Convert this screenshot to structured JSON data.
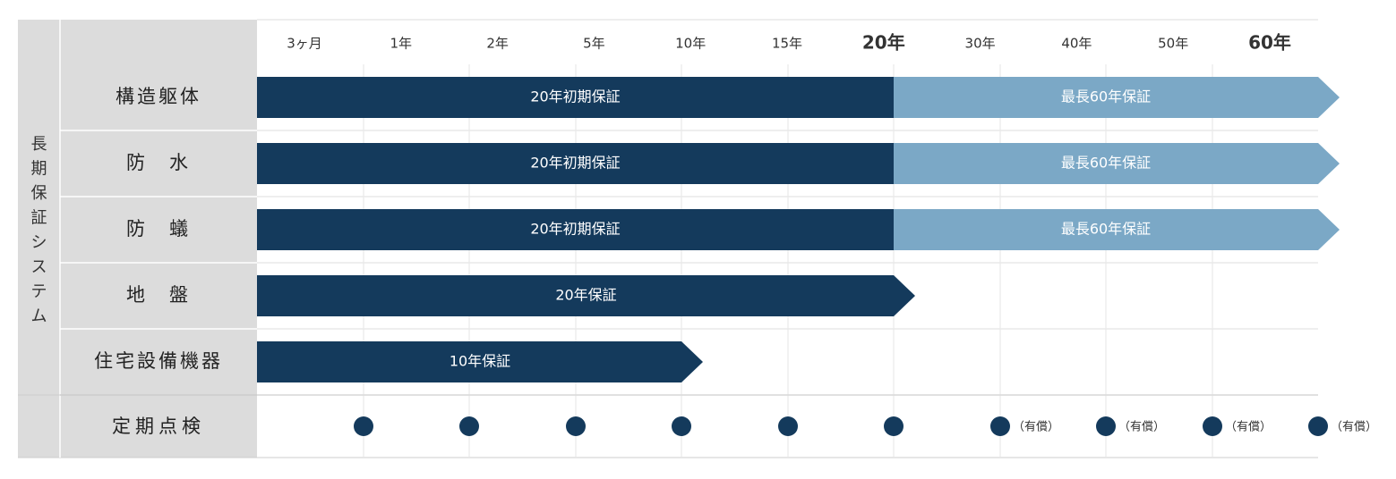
{
  "side_label": "長期保証システム",
  "columns": [
    "3ヶ月",
    "1年",
    "2年",
    "5年",
    "10年",
    "15年",
    "20年",
    "30年",
    "40年",
    "50年",
    "60年"
  ],
  "rows": [
    {
      "label": "構造躯体",
      "segments": [
        "20年初期保証",
        "最長60年保証"
      ]
    },
    {
      "label": "防　水",
      "segments": [
        "20年初期保証",
        "最長60年保証"
      ]
    },
    {
      "label": "防　蟻",
      "segments": [
        "20年初期保証",
        "最長60年保証"
      ]
    },
    {
      "label": "地　盤",
      "segments": [
        "20年保証"
      ]
    },
    {
      "label": "住宅設備機器",
      "segments": [
        "10年保証"
      ]
    }
  ],
  "inspection": {
    "label": "定期点検",
    "paid_notes": [
      "（有償）",
      "（有償）",
      "（有償）",
      "（有償）"
    ]
  }
}
